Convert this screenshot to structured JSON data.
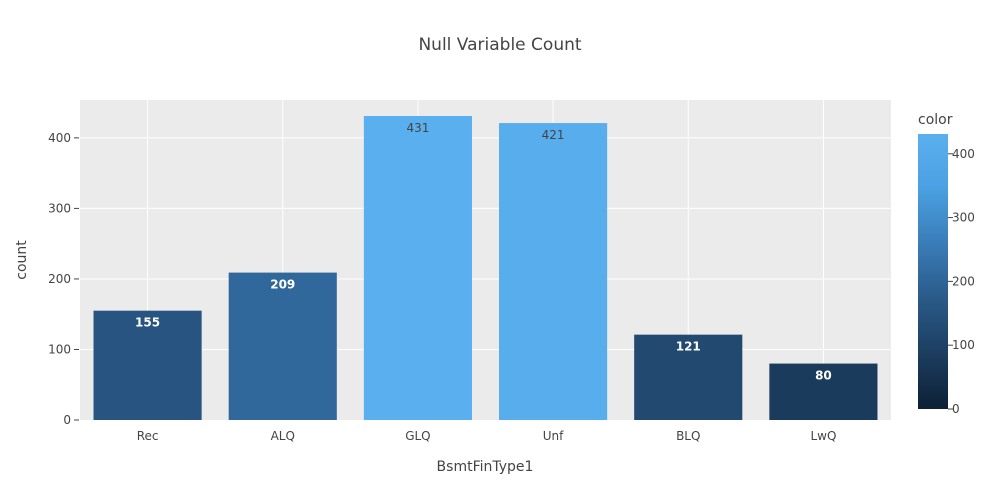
{
  "chart_data": {
    "type": "bar",
    "title": "Null Variable Count",
    "xlabel": "BsmtFinType1",
    "ylabel": "count",
    "categories": [
      "Rec",
      "ALQ",
      "GLQ",
      "Unf",
      "BLQ",
      "LwQ"
    ],
    "values": [
      155,
      209,
      431,
      421,
      121,
      80
    ],
    "data_labels": [
      "155",
      "209",
      "431",
      "421",
      "121",
      "80"
    ],
    "ylim": [
      0,
      453.7
    ],
    "y_ticks": [
      0,
      100,
      200,
      300,
      400
    ],
    "grid": true,
    "colorbar": {
      "title": "color",
      "range": [
        0,
        431
      ],
      "ticks": [
        0,
        100,
        200,
        300,
        400
      ],
      "colors": [
        "#0d2035",
        "#1c3d5f",
        "#2a5a88",
        "#3a7cb8",
        "#4aa0e0",
        "#5aafef"
      ]
    }
  }
}
